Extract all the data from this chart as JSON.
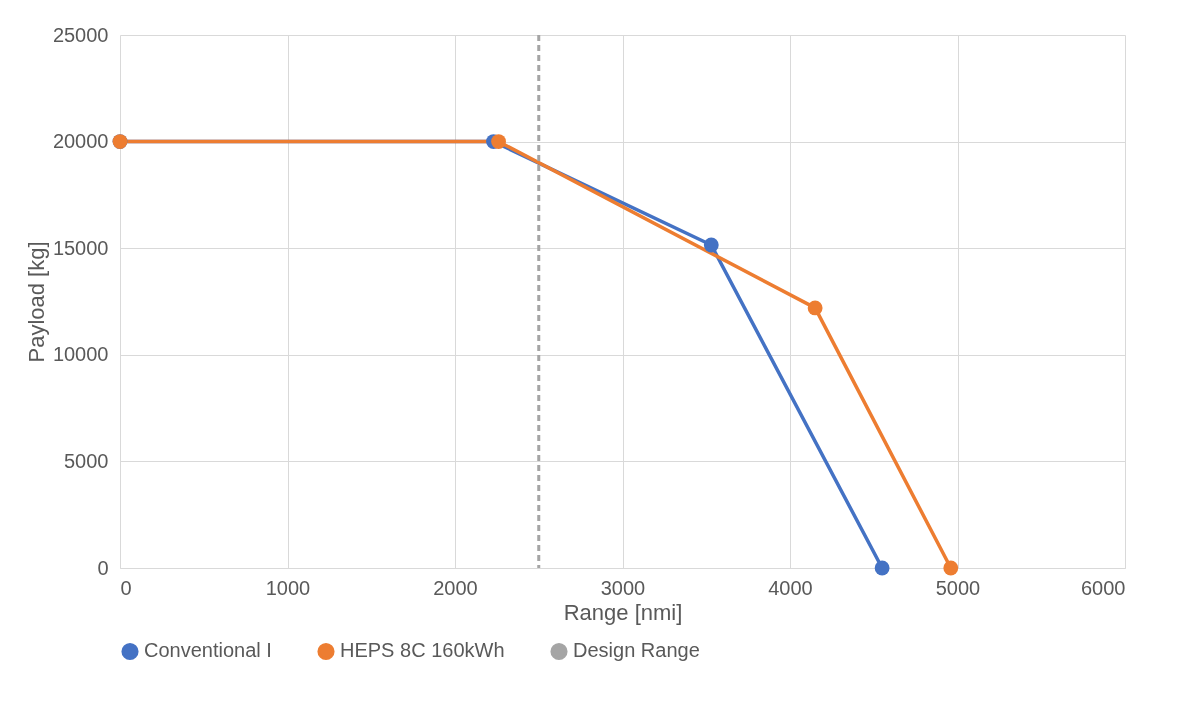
{
  "chart_data": {
    "type": "line",
    "xlabel": "Range [nmi]",
    "ylabel": "Payload [kg]",
    "xlim": [
      0,
      6000
    ],
    "xticks": [
      0,
      1000,
      2000,
      3000,
      4000,
      5000,
      6000
    ],
    "ylim": [
      0,
      25000
    ],
    "yticks": [
      0,
      5000,
      10000,
      15000,
      20000,
      25000
    ],
    "grid": true,
    "legend": "bottom",
    "marker": "circle",
    "line_style": "solid",
    "series": [
      {
        "name": "Conventional I",
        "color": "#4472c4",
        "x": [
          0,
          2230,
          3530,
          4550
        ],
        "values": [
          20000,
          20000,
          15150,
          0
        ]
      },
      {
        "name": "HEPS 8C 160kWh",
        "color": "#ed7d31",
        "x": [
          0,
          2260,
          4150,
          4960
        ],
        "values": [
          20000,
          20000,
          12200,
          0
        ]
      }
    ],
    "ref_lines": [
      {
        "axis": "x",
        "value": 2500,
        "label": "Design Range",
        "color": "#a5a5a5",
        "line_style": "dashed"
      }
    ]
  }
}
